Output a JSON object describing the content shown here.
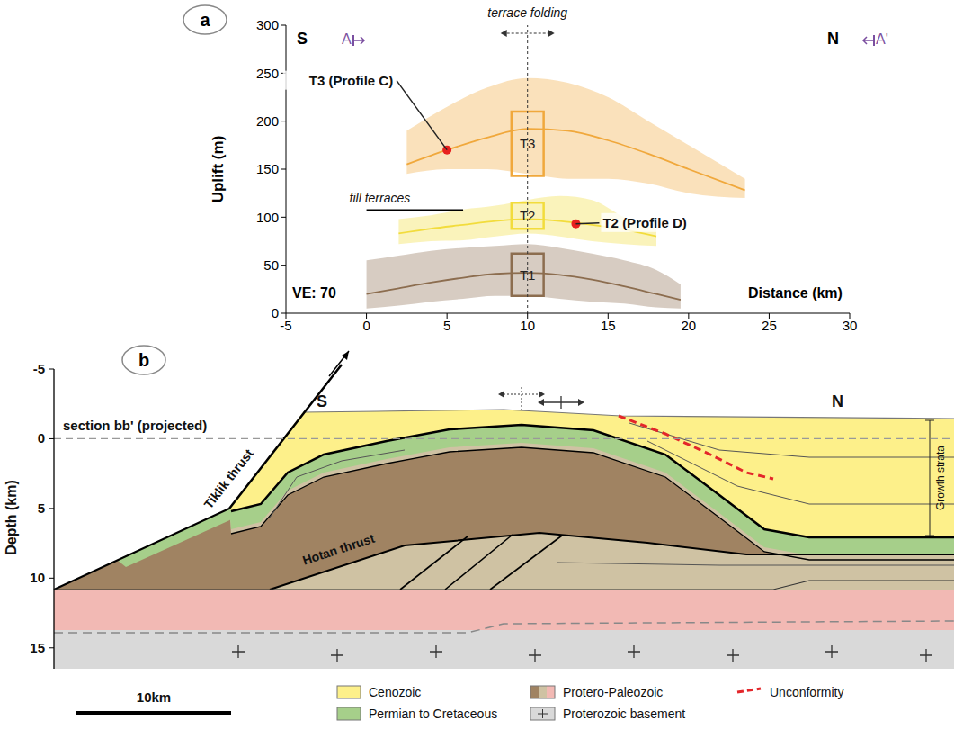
{
  "chart_data": {
    "type": "line",
    "panel_label": "a",
    "x_label": "Distance (km)",
    "y_label": "Uplift (m)",
    "xlim": [
      -5,
      30
    ],
    "xticks": [
      -5,
      0,
      5,
      10,
      15,
      20,
      25,
      30
    ],
    "ylim": [
      0,
      300
    ],
    "yticks": [
      0,
      50,
      100,
      150,
      200,
      250,
      300
    ],
    "series": [
      {
        "name": "T3",
        "color": "#f0a83c",
        "x": [
          2.5,
          5,
          7.5,
          10,
          12.5,
          15,
          17.5,
          20,
          23.5
        ],
        "values": [
          155,
          170,
          183,
          192,
          190,
          180,
          166,
          150,
          128
        ],
        "low": [
          145,
          150,
          150,
          145,
          140,
          140,
          135,
          125,
          120
        ],
        "high": [
          190,
          215,
          235,
          245,
          240,
          225,
          200,
          175,
          140
        ]
      },
      {
        "name": "T2",
        "color": "#f2dc3c",
        "x": [
          2,
          4,
          6,
          8,
          10,
          12,
          14,
          16,
          18
        ],
        "values": [
          83,
          88,
          92,
          96,
          98,
          96,
          92,
          87,
          80
        ],
        "low": [
          72,
          75,
          76,
          80,
          83,
          80,
          75,
          72,
          70
        ],
        "high": [
          98,
          102,
          108,
          112,
          118,
          122,
          118,
          100,
          88
        ]
      },
      {
        "name": "T1",
        "color": "#8c6d4f",
        "x": [
          0,
          2,
          4,
          6,
          8,
          10,
          12,
          14,
          16,
          18,
          19.5
        ],
        "values": [
          20,
          26,
          32,
          37,
          41,
          42,
          40,
          35,
          28,
          20,
          14
        ],
        "low": [
          5,
          8,
          12,
          15,
          18,
          18,
          15,
          12,
          10,
          6,
          5
        ],
        "high": [
          55,
          60,
          65,
          68,
          70,
          72,
          68,
          62,
          55,
          45,
          30
        ]
      }
    ],
    "boxes": [
      {
        "label": "T3",
        "x": [
          9,
          11
        ],
        "y": [
          143,
          210
        ]
      },
      {
        "label": "T2",
        "x": [
          9,
          11
        ],
        "y": [
          88,
          115
        ]
      },
      {
        "label": "T1",
        "x": [
          9,
          11
        ],
        "y": [
          18,
          62
        ]
      }
    ],
    "annotations": [
      {
        "text": "T3 (Profile C)",
        "x": 5,
        "y": 170
      },
      {
        "text": "T2 (Profile D)",
        "x": 13,
        "y": 93
      }
    ],
    "fold_axis": {
      "text": "terrace folding",
      "x": 10
    },
    "fill_terraces": {
      "text": "fill terraces",
      "x": [
        0,
        6
      ],
      "y": 107
    },
    "texts": {
      "south": "S",
      "north": "N",
      "section_start": "A",
      "section_end": "A'",
      "ve": "VE: 70"
    }
  },
  "cross_section": {
    "panel_label": "b",
    "y_label": "Depth (km)",
    "ylim": [
      -5,
      16.5
    ],
    "yticks": [
      -5,
      0,
      5,
      10,
      15
    ],
    "south": "S",
    "north": "N",
    "labels": {
      "tiklik": "Tiklik thrust",
      "hotan": "Hotan thrust",
      "growth": "Growth strata"
    },
    "section": {
      "text": "section bb' (projected)",
      "depth": 0
    },
    "legend": [
      {
        "name": "Cenozoic",
        "color": "#fdf08a"
      },
      {
        "name": "Permian to Cretaceous",
        "color": "#a6cf8a"
      },
      {
        "name": "Protero-Paleozoic",
        "colors": [
          "#a08362",
          "#cfc2a3",
          "#f2b9b4"
        ]
      },
      {
        "name": "Proterozoic basement",
        "color": "#d9d9d9"
      },
      {
        "name": "Unconformity",
        "color": "#e3262a"
      }
    ],
    "scale_bar": {
      "label": "10km",
      "km": 10
    }
  }
}
